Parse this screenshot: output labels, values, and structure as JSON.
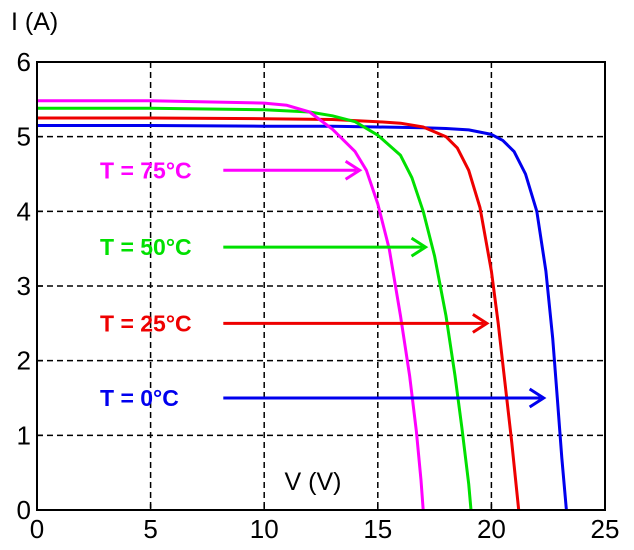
{
  "chart_data": {
    "type": "line",
    "title": "",
    "xlabel": "V (V)",
    "ylabel": "I (A)",
    "xlim": [
      0,
      25
    ],
    "ylim": [
      0,
      6
    ],
    "xticks": [
      0,
      5,
      10,
      15,
      20,
      25
    ],
    "yticks": [
      0,
      1,
      2,
      3,
      4,
      5,
      6
    ],
    "grid": true,
    "grid_style": "dashed",
    "series": [
      {
        "name": "T = 0°C",
        "color": "#0000ee",
        "points": [
          [
            0,
            5.15
          ],
          [
            5,
            5.15
          ],
          [
            10,
            5.14
          ],
          [
            13,
            5.14
          ],
          [
            15,
            5.13
          ],
          [
            17,
            5.12
          ],
          [
            18,
            5.11
          ],
          [
            19,
            5.09
          ],
          [
            20,
            5.03
          ],
          [
            20.5,
            4.95
          ],
          [
            21,
            4.8
          ],
          [
            21.5,
            4.5
          ],
          [
            22,
            4.0
          ],
          [
            22.4,
            3.2
          ],
          [
            22.7,
            2.3
          ],
          [
            22.9,
            1.5
          ],
          [
            23.1,
            0.7
          ],
          [
            23.3,
            0
          ]
        ]
      },
      {
        "name": "T = 25°C",
        "color": "#ee0000",
        "points": [
          [
            0,
            5.25
          ],
          [
            5,
            5.25
          ],
          [
            10,
            5.24
          ],
          [
            13,
            5.23
          ],
          [
            15,
            5.2
          ],
          [
            16,
            5.18
          ],
          [
            17,
            5.13
          ],
          [
            18,
            5.0
          ],
          [
            18.5,
            4.85
          ],
          [
            19,
            4.55
          ],
          [
            19.5,
            4.05
          ],
          [
            20,
            3.2
          ],
          [
            20.3,
            2.5
          ],
          [
            20.6,
            1.7
          ],
          [
            20.9,
            0.9
          ],
          [
            21.2,
            0
          ]
        ]
      },
      {
        "name": "T = 50°C",
        "color": "#00e000",
        "points": [
          [
            0,
            5.38
          ],
          [
            5,
            5.38
          ],
          [
            10,
            5.36
          ],
          [
            12,
            5.33
          ],
          [
            13,
            5.28
          ],
          [
            14,
            5.2
          ],
          [
            15,
            5.02
          ],
          [
            16,
            4.75
          ],
          [
            16.5,
            4.45
          ],
          [
            17,
            4.0
          ],
          [
            17.5,
            3.4
          ],
          [
            18,
            2.6
          ],
          [
            18.4,
            1.8
          ],
          [
            18.7,
            1.1
          ],
          [
            19,
            0.35
          ],
          [
            19.1,
            0
          ]
        ]
      },
      {
        "name": "T = 75°C",
        "color": "#ff00ff",
        "points": [
          [
            0,
            5.48
          ],
          [
            5,
            5.48
          ],
          [
            10,
            5.45
          ],
          [
            11,
            5.42
          ],
          [
            12,
            5.33
          ],
          [
            13,
            5.1
          ],
          [
            14,
            4.8
          ],
          [
            14.5,
            4.55
          ],
          [
            15,
            4.1
          ],
          [
            15.5,
            3.5
          ],
          [
            16,
            2.6
          ],
          [
            16.4,
            1.8
          ],
          [
            16.7,
            1.05
          ],
          [
            16.9,
            0.4
          ],
          [
            17.0,
            0
          ]
        ]
      }
    ],
    "annotations": [
      {
        "text": "T = 75°C",
        "color": "#ff00ff",
        "arrow_from": [
          8.2,
          4.55
        ],
        "arrow_to": [
          14.2,
          4.55
        ]
      },
      {
        "text": "T = 50°C",
        "color": "#00e000",
        "arrow_from": [
          8.2,
          3.52
        ],
        "arrow_to": [
          17.1,
          3.52
        ]
      },
      {
        "text": "T = 25°C",
        "color": "#ee0000",
        "arrow_from": [
          8.2,
          2.5
        ],
        "arrow_to": [
          19.8,
          2.5
        ]
      },
      {
        "text": "T = 0°C",
        "color": "#0000ee",
        "arrow_from": [
          8.2,
          1.5
        ],
        "arrow_to": [
          22.3,
          1.5
        ]
      }
    ]
  }
}
